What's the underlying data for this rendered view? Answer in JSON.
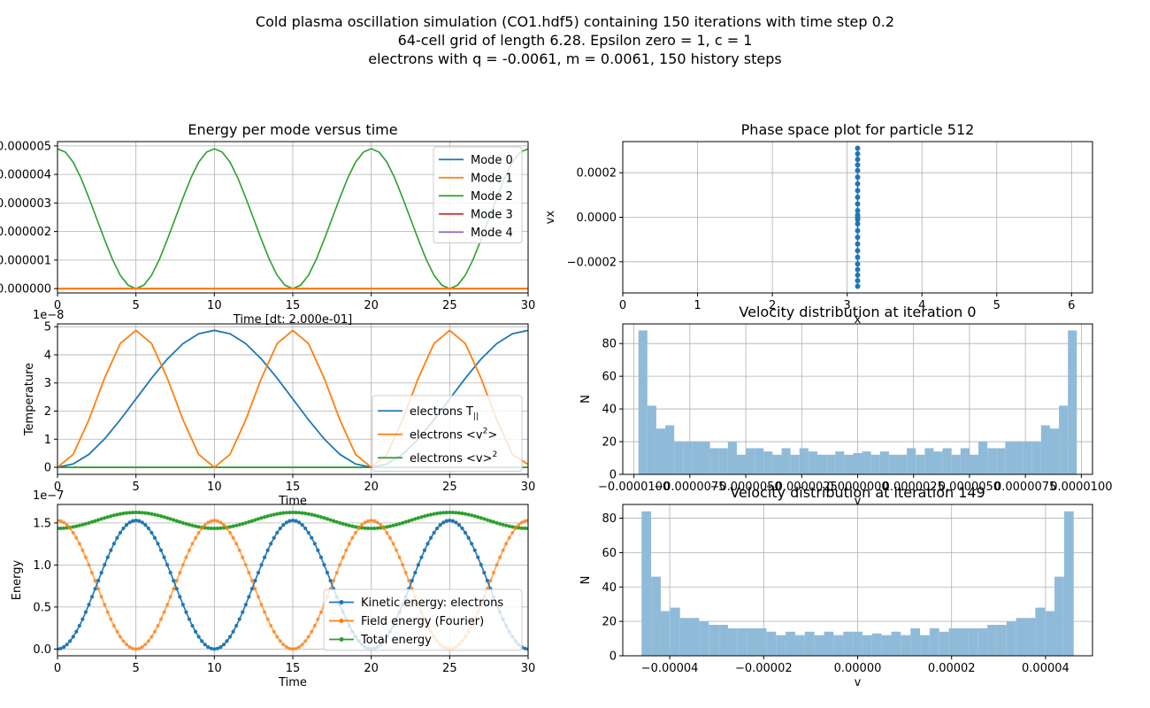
{
  "figure": {
    "title_lines": [
      "Cold plasma oscillation simulation (CO1.hdf5) containing 150 iterations with time step 0.2",
      "64-cell grid of length 6.28. Epsilon zero = 1, c = 1",
      "electrons with q = -0.0061, m = 0.0061, 150 history steps"
    ]
  },
  "colors": {
    "c0": "#1f77b4",
    "c1": "#ff7f0e",
    "c2": "#2ca02c",
    "c3": "#d62728",
    "c4": "#9467bd",
    "hist": "#8fbbd9",
    "grid": "#b0b0b0"
  },
  "chart_data": [
    {
      "id": "energy-modes",
      "type": "line",
      "title": "Energy per mode versus time",
      "xlabel": "Time [dt: 2.000e-01]",
      "ylabel": "",
      "xlim": [
        0,
        30
      ],
      "ylim": [
        -1.5e-07,
        5.15e-06
      ],
      "xticks": [
        0,
        5,
        10,
        15,
        20,
        25,
        30
      ],
      "xtick_labels": [
        "0",
        "5",
        "10",
        "15",
        "20",
        "25",
        "30"
      ],
      "yticks": [
        0,
        1e-06,
        2e-06,
        3e-06,
        4e-06,
        5e-06
      ],
      "ytick_labels": [
        "0.000000",
        "0.000001",
        "0.000002",
        "0.000003",
        "0.000004",
        "0.000005"
      ],
      "grid": true,
      "legend_position": "top-right",
      "series": [
        {
          "name": "Mode 0",
          "color": "#1f77b4",
          "x": [
            0,
            30
          ],
          "y": [
            0,
            0
          ]
        },
        {
          "name": "Mode 1",
          "color": "#ff7f0e",
          "x": [
            0,
            30
          ],
          "y": [
            0,
            0
          ]
        },
        {
          "name": "Mode 2",
          "color": "#2ca02c",
          "x": [
            0,
            0.5,
            1,
            1.5,
            2,
            2.5,
            3,
            3.5,
            4,
            4.5,
            5,
            5.5,
            6,
            6.5,
            7,
            7.5,
            8,
            8.5,
            9,
            9.5,
            10,
            10.5,
            11,
            11.5,
            12,
            12.5,
            13,
            13.5,
            14,
            14.5,
            15,
            15.5,
            16,
            16.5,
            17,
            17.5,
            18,
            18.5,
            19,
            19.5,
            20,
            20.5,
            21,
            21.5,
            22,
            22.5,
            23,
            23.5,
            24,
            24.5,
            25,
            25.5,
            26,
            26.5,
            27,
            27.5,
            28,
            28.5,
            29,
            29.5,
            30
          ],
          "y": [
            4.9e-06,
            4.78e-06,
            4.43e-06,
            3.87e-06,
            3.18e-06,
            2.45e-06,
            1.72e-06,
            1.03e-06,
            4.7e-07,
            1.2e-07,
            0,
            1.2e-07,
            4.7e-07,
            1.03e-06,
            1.72e-06,
            2.45e-06,
            3.18e-06,
            3.87e-06,
            4.43e-06,
            4.78e-06,
            4.9e-06,
            4.78e-06,
            4.43e-06,
            3.87e-06,
            3.18e-06,
            2.45e-06,
            1.72e-06,
            1.03e-06,
            4.7e-07,
            1.2e-07,
            0,
            1.2e-07,
            4.7e-07,
            1.03e-06,
            1.72e-06,
            2.45e-06,
            3.18e-06,
            3.87e-06,
            4.43e-06,
            4.78e-06,
            4.9e-06,
            4.78e-06,
            4.43e-06,
            3.87e-06,
            3.18e-06,
            2.45e-06,
            1.72e-06,
            1.03e-06,
            4.7e-07,
            1.2e-07,
            0,
            1.2e-07,
            4.7e-07,
            1.03e-06,
            1.72e-06,
            2.45e-06,
            3.18e-06,
            3.87e-06,
            4.43e-06,
            4.78e-06,
            4.9e-06
          ]
        },
        {
          "name": "Mode 3",
          "color": "#d62728",
          "x": [
            0,
            30
          ],
          "y": [
            0,
            0
          ]
        },
        {
          "name": "Mode 4",
          "color": "#9467bd",
          "x": [
            0,
            30
          ],
          "y": [
            0,
            0
          ]
        }
      ]
    },
    {
      "id": "phase-space",
      "type": "scatter",
      "title": "Phase space plot for particle 512",
      "xlabel": "x",
      "ylabel": "vx",
      "xlim": [
        0,
        6.28
      ],
      "ylim": [
        -0.00034,
        0.00034
      ],
      "xticks": [
        0,
        1,
        2,
        3,
        4,
        5,
        6
      ],
      "xtick_labels": [
        "0",
        "1",
        "2",
        "3",
        "4",
        "5",
        "6"
      ],
      "yticks": [
        -0.0002,
        0,
        0.0002
      ],
      "ytick_labels": [
        "−0.0002",
        "0.0000",
        "0.0002"
      ],
      "grid": true,
      "series": [
        {
          "name": "",
          "color": "#1f77b4",
          "x": [
            3.14,
            3.14,
            3.14,
            3.14,
            3.14,
            3.14,
            3.14,
            3.14,
            3.14,
            3.14,
            3.14,
            3.14,
            3.14,
            3.14,
            3.14,
            3.14,
            3.14,
            3.14,
            3.14,
            3.14,
            3.14,
            3.14,
            3.14,
            3.14,
            3.14
          ],
          "y": [
            0.00031,
            0.000285,
            0.00026,
            0.000235,
            0.00021,
            0.00018,
            0.00015,
            0.00012,
            9e-05,
            6e-05,
            3e-05,
            1e-05,
            0,
            -1e-05,
            -3e-05,
            -6e-05,
            -9e-05,
            -0.00012,
            -0.00015,
            -0.00018,
            -0.00021,
            -0.000235,
            -0.00026,
            -0.000285,
            -0.00031
          ]
        }
      ]
    },
    {
      "id": "temperature",
      "type": "line",
      "title": "",
      "xlabel": "Time",
      "ylabel": "Temperature",
      "offset_label": "1e−8",
      "xlim": [
        0,
        30
      ],
      "ylim": [
        -0.25,
        5.1
      ],
      "xticks": [
        0,
        5,
        10,
        15,
        20,
        25,
        30
      ],
      "xtick_labels": [
        "0",
        "5",
        "10",
        "15",
        "20",
        "25",
        "30"
      ],
      "yticks": [
        0,
        1,
        2,
        3,
        4,
        5
      ],
      "ytick_labels": [
        "0",
        "1",
        "2",
        "3",
        "4",
        "5"
      ],
      "grid": true,
      "legend_position": "lower-right",
      "series": [
        {
          "name": "electrons T",
          "subscript": "||",
          "color": "#1f77b4",
          "x": [
            0,
            1,
            2,
            3,
            4,
            5,
            6,
            7,
            8,
            9,
            10,
            11,
            12,
            13,
            14,
            15,
            16,
            17,
            18,
            19,
            20,
            21,
            22,
            23,
            24,
            25,
            26,
            27,
            28,
            29,
            30
          ],
          "y": [
            0,
            0.12,
            0.46,
            1.01,
            1.69,
            2.43,
            3.17,
            3.85,
            4.4,
            4.75,
            4.87,
            4.75,
            4.4,
            3.85,
            3.17,
            2.43,
            1.69,
            1.01,
            0.46,
            0.12,
            0,
            0.12,
            0.46,
            1.01,
            1.69,
            2.43,
            3.17,
            3.85,
            4.4,
            4.75,
            4.87
          ]
        },
        {
          "name": "electrons  <v",
          "superscript": "2",
          "suffix": ">",
          "color": "#ff7f0e",
          "x": [
            0,
            1,
            2,
            3,
            4,
            5,
            6,
            7,
            8,
            9,
            10,
            11,
            12,
            13,
            14,
            15,
            16,
            17,
            18,
            19,
            20,
            21,
            22,
            23,
            24,
            25,
            26,
            27,
            28,
            29,
            30
          ],
          "y": [
            0,
            0.46,
            1.69,
            3.17,
            4.4,
            4.87,
            4.4,
            3.17,
            1.69,
            0.46,
            0,
            0.46,
            1.69,
            3.17,
            4.4,
            4.87,
            4.4,
            3.17,
            1.69,
            0.46,
            0,
            0.46,
            1.69,
            3.17,
            4.4,
            4.87,
            4.4,
            3.17,
            1.69,
            0.46,
            0.1
          ]
        },
        {
          "name": "electrons  <v>",
          "superscript": "2",
          "suffix": "",
          "color": "#2ca02c",
          "x": [
            0,
            30
          ],
          "y": [
            0,
            0
          ]
        }
      ]
    },
    {
      "id": "velocity-dist-0",
      "type": "bar",
      "title": "Velocity distribution at iteration 0",
      "xlabel": "v",
      "ylabel": "N",
      "xlim": [
        -1.05e-05,
        1.05e-05
      ],
      "ylim": [
        0,
        92
      ],
      "xticks": [
        -1e-05,
        -7.5e-06,
        -5e-06,
        -2.5e-06,
        0,
        2.5e-06,
        5e-06,
        7.5e-06,
        1e-05
      ],
      "xtick_labels": [
        "−0.0000100",
        "−0.0000075",
        "−0.0000050",
        "−0.0000025",
        "0.0000000",
        "0.0000025",
        "0.0000050",
        "0.0000075",
        "0.0000100"
      ],
      "yticks": [
        0,
        20,
        40,
        60,
        80
      ],
      "ytick_labels": [
        "0",
        "20",
        "40",
        "60",
        "80"
      ],
      "grid": true,
      "bin_start": -9.8e-06,
      "bin_end": 9.8e-06,
      "values": [
        88,
        42,
        28,
        30,
        20,
        20,
        20,
        20,
        16,
        16,
        20,
        12,
        16,
        16,
        14,
        12,
        16,
        12,
        16,
        14,
        12,
        12,
        14,
        12,
        13,
        14,
        12,
        14,
        12,
        12,
        16,
        12,
        16,
        14,
        16,
        12,
        16,
        12,
        20,
        16,
        16,
        20,
        20,
        20,
        20,
        30,
        28,
        42,
        88
      ]
    },
    {
      "id": "velocity-dist-149",
      "type": "bar",
      "title": "Velocity distribution at iteration 149",
      "xlabel": "v",
      "ylabel": "N",
      "xlim": [
        -5e-05,
        5e-05
      ],
      "ylim": [
        0,
        88
      ],
      "xticks": [
        -4e-05,
        -2e-05,
        0,
        2e-05,
        4e-05
      ],
      "xtick_labels": [
        "−0.00004",
        "−0.00002",
        "0.00000",
        "0.00002",
        "0.00004"
      ],
      "yticks": [
        0,
        20,
        40,
        60,
        80
      ],
      "ytick_labels": [
        "0",
        "20",
        "40",
        "60",
        "80"
      ],
      "grid": true,
      "bin_start": -4.6e-05,
      "bin_end": 4.6e-05,
      "values": [
        84,
        46,
        26,
        28,
        22,
        22,
        20,
        18,
        18,
        16,
        16,
        16,
        16,
        14,
        12,
        14,
        12,
        14,
        12,
        14,
        12,
        14,
        14,
        12,
        13,
        12,
        14,
        12,
        16,
        12,
        16,
        14,
        16,
        16,
        16,
        16,
        18,
        18,
        20,
        22,
        22,
        28,
        26,
        46,
        84
      ]
    },
    {
      "id": "energy-time",
      "type": "line",
      "title": "",
      "xlabel": "Time",
      "ylabel": "Energy",
      "offset_label": "1e−7",
      "xlim": [
        0,
        30
      ],
      "ylim": [
        -0.08,
        1.72
      ],
      "xticks": [
        0,
        5,
        10,
        15,
        20,
        25,
        30
      ],
      "xtick_labels": [
        "0",
        "5",
        "10",
        "15",
        "20",
        "25",
        "30"
      ],
      "yticks": [
        0,
        0.5,
        1.0,
        1.5
      ],
      "ytick_labels": [
        "0.0",
        "0.5",
        "1.0",
        "1.5"
      ],
      "grid": true,
      "legend_position": "lower-right",
      "series": [
        {
          "name": "Kinetic energy: electrons",
          "color": "#1f77b4",
          "kind": "kinetic",
          "amplitude": 1.53,
          "period": 10
        },
        {
          "name": "Field energy (Fourier)",
          "color": "#ff7f0e",
          "kind": "field",
          "amplitude": 1.53,
          "period": 10
        },
        {
          "name": "Total energy",
          "color": "#2ca02c",
          "kind": "total",
          "amplitude": 1.53,
          "period": 10
        }
      ]
    }
  ]
}
